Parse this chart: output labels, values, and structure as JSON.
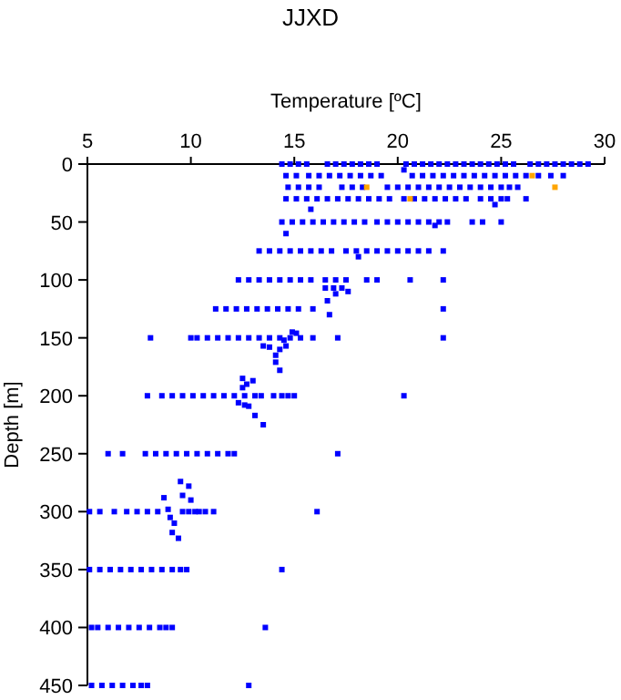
{
  "chart_data": {
    "type": "scatter",
    "title": "JJXD",
    "xlabel": "Temperature [ºC]",
    "ylabel": "Depth [m]",
    "xlim": [
      5,
      30
    ],
    "xticks": [
      5,
      10,
      15,
      20,
      25,
      30
    ],
    "ylim": [
      450,
      0
    ],
    "yticks": [
      0,
      50,
      100,
      150,
      200,
      250,
      300,
      350,
      400,
      450
    ],
    "grid": false,
    "marker": "square",
    "series": [
      {
        "color": "#0000ff",
        "x": [
          14.4,
          14.8,
          15.2,
          15.6,
          16.6,
          17.0,
          17.4,
          17.8,
          18.2,
          18.6,
          19.0,
          20.4,
          20.8,
          21.2,
          21.6,
          22.0,
          22.4,
          22.8,
          23.2,
          23.6,
          24.0,
          24.4,
          24.8,
          25.2,
          25.6,
          26.4,
          26.8,
          27.2,
          27.6,
          28.0,
          28.4,
          28.8,
          29.2
        ],
        "values": [
          0,
          0,
          0,
          0,
          0,
          0,
          0,
          0,
          0,
          0,
          0,
          0,
          0,
          0,
          0,
          0,
          0,
          0,
          0,
          0,
          0,
          0,
          0,
          0,
          0,
          0,
          0,
          0,
          0,
          0,
          0,
          0,
          0
        ]
      },
      {
        "color": "#0000ff",
        "x": [
          14.6,
          15.1,
          15.7,
          16.2,
          16.7,
          17.2,
          17.7,
          18.2,
          18.7,
          19.2,
          20.7,
          21.2,
          21.7,
          22.2,
          22.7,
          23.2,
          23.7,
          24.2,
          24.7,
          25.2,
          25.7,
          26.2,
          26.8,
          27.4,
          28.0,
          20.3
        ],
        "values": [
          10,
          10,
          10,
          10,
          10,
          10,
          10,
          10,
          10,
          10,
          10,
          10,
          10,
          10,
          10,
          10,
          10,
          10,
          10,
          10,
          10,
          10,
          10,
          10,
          10,
          5
        ]
      },
      {
        "color": "#0000ff",
        "x": [
          14.7,
          15.2,
          15.7,
          16.2,
          17.3,
          17.8,
          18.3,
          19.5,
          20.0,
          20.5,
          21.0,
          21.5,
          22.0,
          22.5,
          23.0,
          23.5,
          24.0,
          24.5,
          25.0,
          25.4,
          25.8
        ],
        "values": [
          20,
          20,
          20,
          20,
          20,
          20,
          20,
          20,
          20,
          20,
          20,
          20,
          20,
          20,
          20,
          20,
          20,
          20,
          20,
          20,
          20
        ]
      },
      {
        "color": "#0000ff",
        "x": [
          14.6,
          15.1,
          15.6,
          16.1,
          16.6,
          17.1,
          17.6,
          18.1,
          18.6,
          19.1,
          19.6,
          20.3,
          20.8,
          21.3,
          21.8,
          22.3,
          22.8,
          23.3,
          24.0,
          24.5,
          25.0,
          25.3,
          26.2,
          15.8,
          24.7
        ],
        "values": [
          30,
          30,
          30,
          30,
          30,
          30,
          30,
          30,
          30,
          30,
          30,
          30,
          30,
          30,
          30,
          30,
          30,
          30,
          30,
          30,
          30,
          30,
          30,
          39,
          35
        ]
      },
      {
        "color": "#0000ff",
        "x": [
          14.4,
          14.9,
          15.4,
          15.9,
          16.4,
          16.9,
          17.4,
          17.9,
          18.4,
          19.0,
          19.5,
          20.0,
          20.5,
          21.0,
          21.5,
          22.0,
          22.4,
          23.6,
          24.1,
          25.0,
          14.6,
          21.8
        ],
        "values": [
          50,
          50,
          50,
          50,
          50,
          50,
          50,
          50,
          50,
          50,
          50,
          50,
          50,
          50,
          50,
          50,
          50,
          50,
          50,
          50,
          60,
          53
        ]
      },
      {
        "color": "#0000ff",
        "x": [
          13.3,
          13.8,
          14.3,
          14.8,
          15.3,
          15.8,
          16.3,
          16.8,
          17.5,
          18.0,
          18.5,
          19.0,
          19.5,
          20.0,
          20.5,
          21.0,
          21.5,
          22.2,
          18.1
        ],
        "values": [
          75,
          75,
          75,
          75,
          75,
          75,
          75,
          75,
          75,
          75,
          75,
          75,
          75,
          75,
          75,
          75,
          75,
          75,
          80
        ]
      },
      {
        "color": "#0000ff",
        "x": [
          12.3,
          12.8,
          13.3,
          13.8,
          14.3,
          14.8,
          15.3,
          15.8,
          16.5,
          17.0,
          17.5,
          18.5,
          19.0,
          20.6,
          22.2,
          16.5,
          16.9,
          17.3,
          17.6,
          17.0,
          16.6,
          16.7,
          22.2
        ],
        "values": [
          100,
          100,
          100,
          100,
          100,
          100,
          100,
          100,
          100,
          100,
          100,
          100,
          100,
          100,
          100,
          107,
          107,
          107,
          110,
          112,
          118,
          130,
          125
        ]
      },
      {
        "color": "#0000ff",
        "x": [
          11.2,
          11.7,
          12.2,
          12.7,
          13.2,
          13.7,
          14.2,
          14.7,
          15.2,
          15.9
        ],
        "values": [
          125,
          125,
          125,
          125,
          125,
          125,
          125,
          125,
          125,
          125
        ]
      },
      {
        "color": "#0000ff",
        "x": [
          8.05,
          10.0,
          10.3,
          10.8,
          11.3,
          11.8,
          12.3,
          12.8,
          13.3,
          13.8,
          14.3,
          14.8,
          15.3,
          15.9,
          17.1,
          22.2,
          14.9,
          15.1,
          14.5,
          14.6,
          14.3,
          14.1,
          14.1,
          14.3,
          13.8,
          13.5
        ],
        "values": [
          150,
          150,
          150,
          150,
          150,
          150,
          150,
          150,
          150,
          150,
          150,
          150,
          150,
          150,
          150,
          150,
          145,
          146,
          152,
          157,
          160,
          165,
          171,
          178,
          158,
          157
        ]
      },
      {
        "color": "#0000ff",
        "x": [
          7.9,
          8.6,
          9.1,
          9.6,
          10.1,
          10.6,
          11.1,
          11.6,
          12.1,
          12.6,
          13.1,
          13.4,
          14.0,
          14.4,
          14.7,
          15.0,
          20.3,
          12.3,
          12.6,
          12.8,
          13.1,
          13.5,
          12.5,
          12.7,
          13.0,
          12.5
        ],
        "values": [
          200,
          200,
          200,
          200,
          200,
          200,
          200,
          200,
          200,
          200,
          200,
          200,
          200,
          200,
          200,
          200,
          200,
          206,
          208,
          209,
          217,
          225,
          185,
          190,
          187,
          193
        ]
      },
      {
        "color": "#0000ff",
        "x": [
          6.0,
          6.7,
          7.8,
          8.3,
          8.8,
          9.3,
          9.8,
          10.3,
          10.8,
          11.3,
          11.8,
          12.1,
          17.1,
          9.5,
          9.9,
          9.6,
          8.7,
          10.0,
          8.9,
          9.0,
          9.2,
          9.1,
          9.4
        ],
        "values": [
          250,
          250,
          250,
          250,
          250,
          250,
          250,
          250,
          250,
          250,
          250,
          250,
          250,
          274,
          278,
          286,
          288,
          290,
          298,
          305,
          310,
          318,
          323
        ]
      },
      {
        "color": "#0000ff",
        "x": [
          5.1,
          5.6,
          6.3,
          6.9,
          7.4,
          7.9,
          8.4,
          9.6,
          9.9,
          10.2,
          10.4,
          10.7,
          11.1,
          16.1
        ],
        "values": [
          300,
          300,
          300,
          300,
          300,
          300,
          300,
          300,
          300,
          300,
          300,
          300,
          300,
          300
        ]
      },
      {
        "color": "#0000ff",
        "x": [
          5.1,
          5.6,
          6.1,
          6.6,
          7.1,
          7.6,
          8.1,
          8.6,
          9.1,
          9.5,
          9.8,
          14.4
        ],
        "values": [
          350,
          350,
          350,
          350,
          350,
          350,
          350,
          350,
          350,
          350,
          350,
          350
        ]
      },
      {
        "color": "#0000ff",
        "x": [
          5.2,
          5.5,
          6.0,
          6.5,
          7.0,
          7.5,
          8.0,
          8.5,
          8.8,
          9.1,
          13.6
        ],
        "values": [
          400,
          400,
          400,
          400,
          400,
          400,
          400,
          400,
          400,
          400,
          400
        ]
      },
      {
        "color": "#0000ff",
        "x": [
          5.2,
          5.7,
          6.2,
          6.7,
          7.2,
          7.6,
          7.9,
          12.8
        ],
        "values": [
          450,
          450,
          450,
          450,
          450,
          450,
          450,
          450
        ]
      },
      {
        "color": "#ffa500",
        "x": [
          18.5,
          26.5,
          27.6,
          20.6
        ],
        "values": [
          20,
          10,
          20,
          30
        ]
      }
    ]
  }
}
